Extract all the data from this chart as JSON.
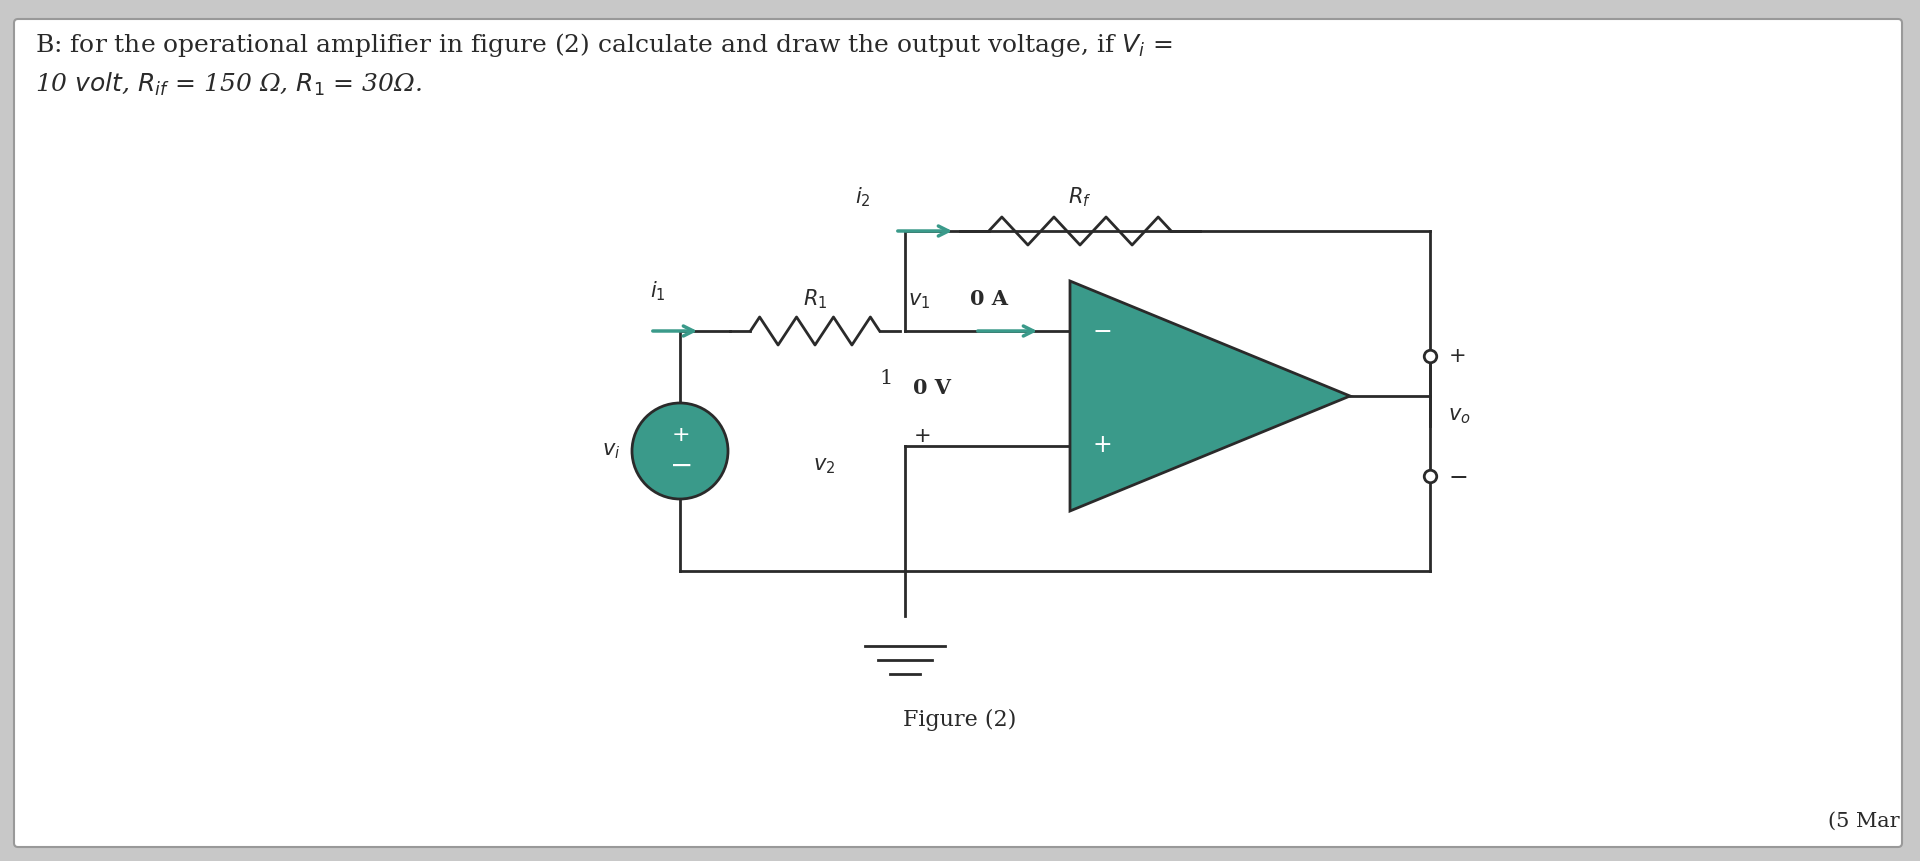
{
  "bg_color": "#c8c8c8",
  "box_bg": "white",
  "title_line1": "B: for the operational amplifier in figure (2) calculate and draw the output voltage, if $V_i$ =",
  "title_line2": "10 $volt$, $R_{if}$ = 150 Ω, $R_1$ = 30Ω.",
  "figure_label": "Figure (2)",
  "marks_label": "(5 Mar",
  "opamp_color": "#3a9a8a",
  "wire_color": "#2a2a2a",
  "arrow_color": "#3a9a8a",
  "text_color": "#2a2a2a",
  "title_fontsize": 18,
  "label_fontsize": 15
}
